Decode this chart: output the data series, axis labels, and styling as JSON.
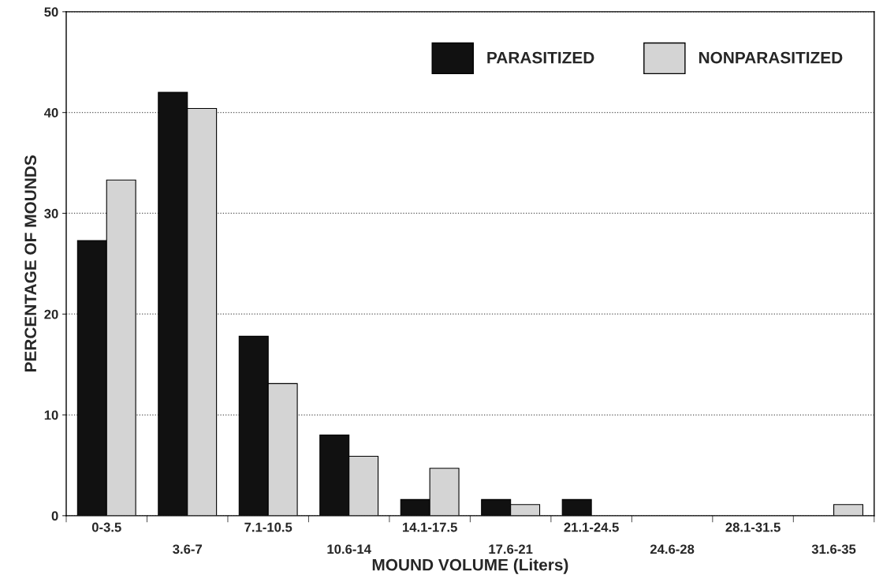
{
  "chart_data": {
    "type": "bar",
    "xlabel": "MOUND VOLUME (Liters)",
    "ylabel": "PERCENTAGE OF MOUNDS",
    "categories": [
      "0-3.5",
      "3.6-7",
      "7.1-10.5",
      "10.6-14",
      "14.1-17.5",
      "17.6-21",
      "21.1-24.5",
      "24.6-28",
      "28.1-31.5",
      "31.6-35"
    ],
    "series": [
      {
        "name": "PARASITIZED",
        "color": "#111111",
        "values": [
          27.3,
          42.0,
          17.8,
          8.0,
          1.6,
          1.6,
          1.6,
          0,
          0,
          0
        ]
      },
      {
        "name": "NONPARASITIZED",
        "color": "#d4d4d4",
        "values": [
          33.3,
          40.4,
          13.1,
          5.9,
          4.7,
          1.1,
          0,
          0,
          0,
          1.1
        ]
      }
    ],
    "ylim": [
      0,
      50
    ],
    "yticks": [
      0,
      10,
      20,
      30,
      40,
      50
    ],
    "grid": "y",
    "legend": "top right"
  }
}
